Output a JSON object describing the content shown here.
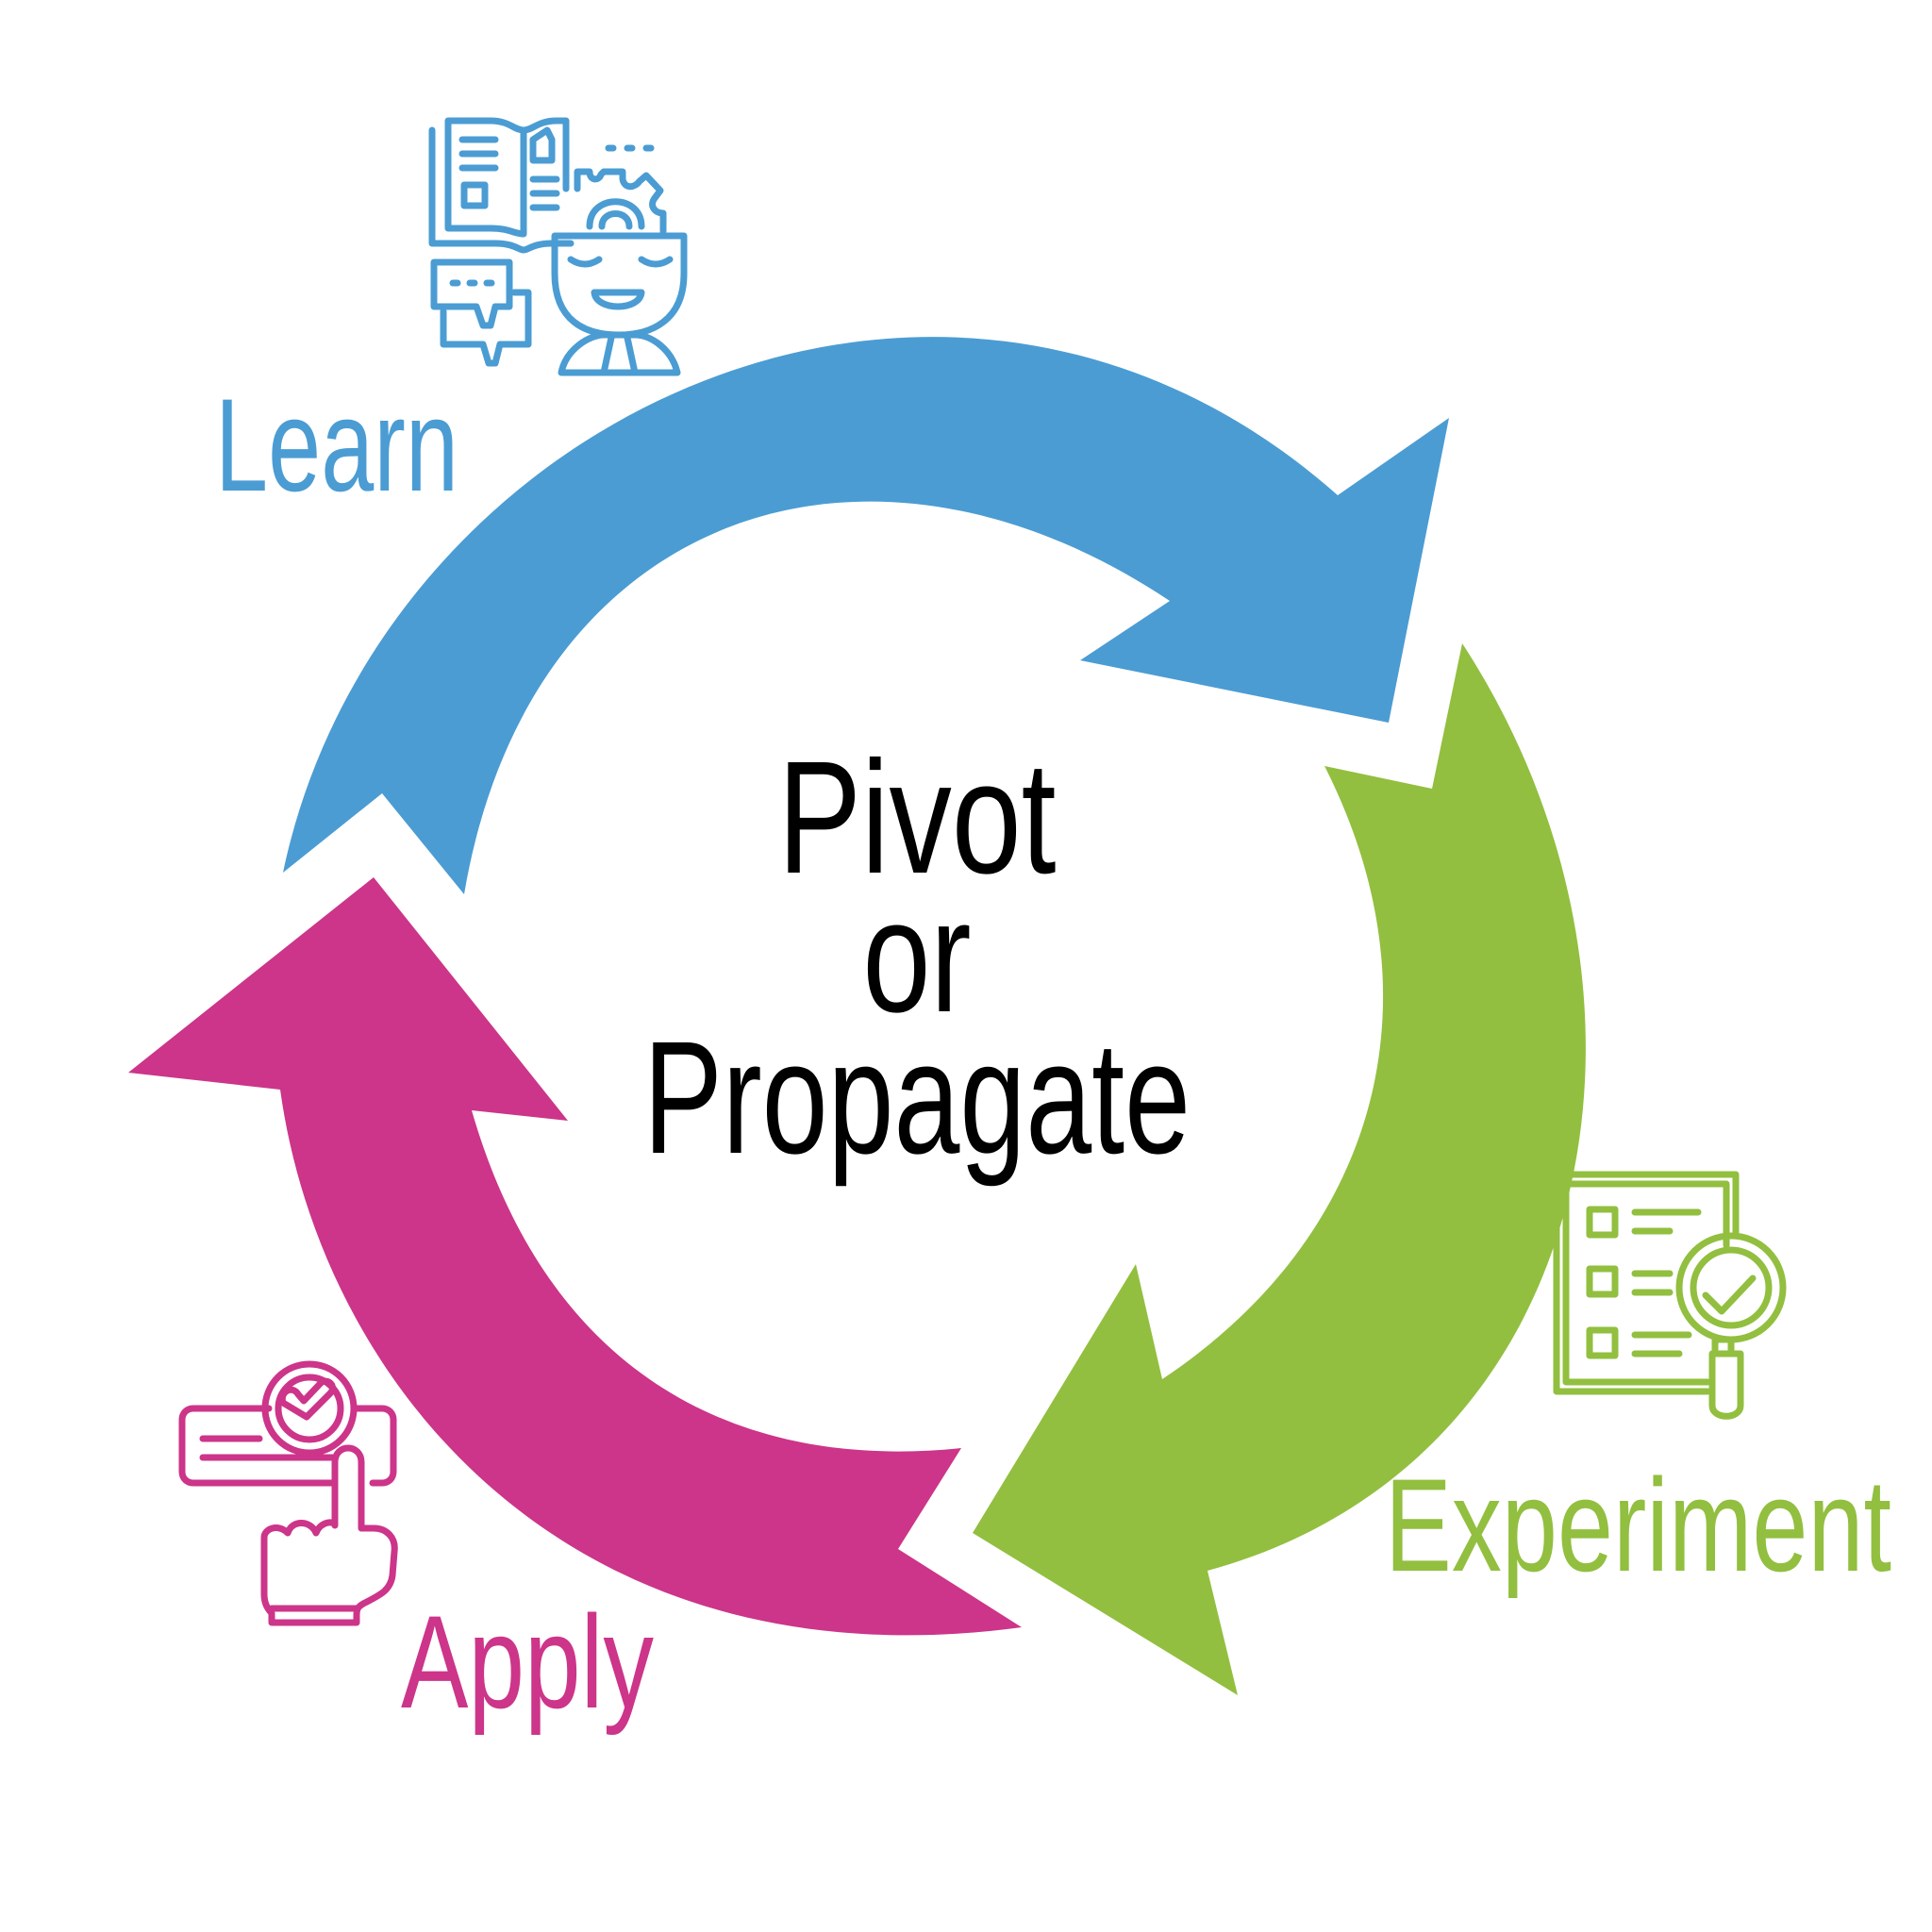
{
  "center": {
    "line1": "Pivot",
    "line2": "or",
    "line3": "Propagate",
    "color": "#000000"
  },
  "stages": [
    {
      "key": "learn",
      "label": "Learn",
      "color": "#4B9CD3",
      "icon": "learning-student-icon"
    },
    {
      "key": "experiment",
      "label": "Experiment",
      "color": "#92BF3F",
      "icon": "checklist-magnifier-icon"
    },
    {
      "key": "apply",
      "label": "Apply",
      "color": "#CC3589",
      "icon": "hand-tap-approve-icon"
    }
  ]
}
